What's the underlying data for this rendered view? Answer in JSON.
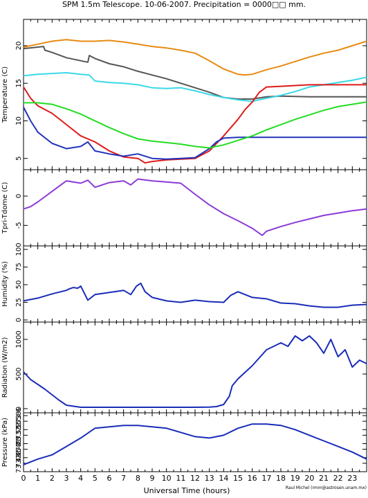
{
  "chart_data": {
    "type": "line",
    "title": "SPM 1.5m Telescope. 10-06-2007. Precipitation = 0000□□ mm.",
    "xlabel": "Universal Time (hours)",
    "credit": "Raul Michel (rmm@astrosen.unam.mx)",
    "xlim": [
      0,
      24
    ],
    "xticks": [
      0,
      1,
      2,
      3,
      4,
      5,
      6,
      7,
      8,
      9,
      10,
      11,
      12,
      13,
      14,
      15,
      16,
      17,
      18,
      19,
      20,
      21,
      22,
      23
    ],
    "panels": [
      {
        "ylabel": "Temperature (C)",
        "ylim": [
          3.5,
          23.5
        ],
        "yticks": [
          5,
          10,
          15,
          20
        ],
        "series": [
          {
            "color": "#e88a10",
            "x": [
              0,
              1,
              2,
              3,
              4,
              5,
              6,
              7,
              8,
              9,
              10,
              11,
              12,
              13,
              14,
              15,
              15.5,
              16,
              17,
              18,
              19,
              20,
              21,
              22,
              23,
              24
            ],
            "y": [
              19.8,
              20.2,
              20.6,
              20.8,
              20.6,
              20.6,
              20.7,
              20.5,
              20.2,
              19.9,
              19.7,
              19.4,
              19.0,
              18.0,
              16.9,
              16.2,
              16.1,
              16.2,
              16.8,
              17.3,
              17.9,
              18.5,
              19.0,
              19.4,
              20.0,
              20.6
            ]
          },
          {
            "color": "#555555",
            "x": [
              0,
              1.4,
              1.5,
              2,
              3,
              4,
              4.5,
              4.6,
              5,
              6,
              7,
              8,
              9,
              10,
              11,
              12,
              13,
              14,
              15,
              16,
              17,
              18,
              20,
              22,
              24
            ],
            "y": [
              19.6,
              19.9,
              19.4,
              19.1,
              18.4,
              18.0,
              17.8,
              18.7,
              18.3,
              17.6,
              17.2,
              16.6,
              16.1,
              15.6,
              15.0,
              14.4,
              13.8,
              13.1,
              12.9,
              12.9,
              13.2,
              13.3,
              13.2,
              13.2,
              13.2
            ]
          },
          {
            "color": "#3ad8e8",
            "x": [
              0,
              1,
              2,
              3,
              4,
              4.6,
              5,
              6,
              7,
              8,
              9,
              10,
              11,
              12,
              13,
              14,
              15,
              16,
              17,
              18,
              19,
              20,
              21,
              22,
              23,
              24
            ],
            "y": [
              16.0,
              16.2,
              16.3,
              16.4,
              16.2,
              16.1,
              15.3,
              15.1,
              15.0,
              14.8,
              14.4,
              14.3,
              14.4,
              14.0,
              13.5,
              13.1,
              12.8,
              12.6,
              13.0,
              13.4,
              13.9,
              14.5,
              14.8,
              15.1,
              15.4,
              15.8
            ]
          },
          {
            "color": "#dd1a1a",
            "x": [
              0,
              0.5,
              1,
              2,
              3,
              4,
              5,
              6,
              7,
              8,
              8.5,
              9,
              10,
              11,
              12,
              13,
              14,
              15,
              15.5,
              16,
              16.5,
              17,
              18,
              20,
              22,
              24
            ],
            "y": [
              14.5,
              13.0,
              12.0,
              11.0,
              9.5,
              8.0,
              7.2,
              6.0,
              5.2,
              5.0,
              4.4,
              4.6,
              4.8,
              4.9,
              5.0,
              6.0,
              8.0,
              10.2,
              11.5,
              12.5,
              13.8,
              14.5,
              14.6,
              14.8,
              14.8,
              14.8
            ]
          },
          {
            "color": "#2233bb",
            "x": [
              0,
              0.5,
              1,
              2,
              3,
              4,
              4.5,
              5,
              6,
              7,
              8,
              9,
              10,
              11,
              12,
              13,
              13.5,
              14,
              15,
              16,
              18,
              20,
              22,
              24
            ],
            "y": [
              11.8,
              10.0,
              8.5,
              7.0,
              6.3,
              6.6,
              7.2,
              6.0,
              5.6,
              5.3,
              5.6,
              5.0,
              4.9,
              5.0,
              5.1,
              6.3,
              7.2,
              7.7,
              7.8,
              7.8,
              7.8,
              7.8,
              7.8,
              7.8
            ]
          },
          {
            "color": "#22dd22",
            "x": [
              0,
              1,
              2,
              3,
              4,
              5,
              6,
              7,
              8,
              9,
              10,
              11,
              12,
              13,
              14,
              15,
              16,
              17,
              18,
              19,
              20,
              21,
              22,
              23,
              24
            ],
            "y": [
              12.4,
              12.4,
              12.2,
              11.6,
              10.9,
              10.0,
              9.1,
              8.3,
              7.6,
              7.3,
              7.1,
              6.9,
              6.6,
              6.4,
              6.8,
              7.4,
              8.0,
              8.8,
              9.5,
              10.2,
              10.8,
              11.4,
              11.9,
              12.2,
              12.5
            ]
          }
        ]
      },
      {
        "ylabel": "Tpri-Tdome (C)",
        "ylim": [
          -8.5,
          4.5
        ],
        "yticks": [
          -5,
          0
        ],
        "series": [
          {
            "color": "#8b3ad8",
            "x": [
              0,
              0.5,
              1,
              2,
              3,
              4,
              4.5,
              5,
              6,
              7,
              7.5,
              8,
              9,
              10,
              11,
              12,
              13,
              14,
              15,
              16,
              16.7,
              17,
              18,
              19,
              20,
              21,
              22,
              23,
              24
            ],
            "y": [
              -2.2,
              -1.8,
              -1.0,
              0.8,
              2.6,
              2.2,
              2.7,
              1.5,
              2.3,
              2.6,
              1.9,
              2.9,
              2.6,
              2.4,
              2.2,
              0.3,
              -1.5,
              -3.0,
              -4.2,
              -5.5,
              -6.7,
              -6.0,
              -5.2,
              -4.5,
              -3.9,
              -3.3,
              -2.9,
              -2.5,
              -2.2
            ]
          }
        ]
      },
      {
        "ylabel": "Humidity (%)",
        "ylim": [
          -3,
          105
        ],
        "yticks": [
          0,
          25,
          50,
          75,
          100
        ],
        "series": [
          {
            "color": "#1a2bb8",
            "x": [
              0,
              1,
              2,
              3,
              3.2,
              3.5,
              3.8,
              4,
              4.5,
              5,
              6,
              7,
              7.5,
              7.9,
              8.2,
              8.5,
              9,
              10,
              11,
              12,
              13,
              14,
              14.5,
              15,
              16,
              17,
              18,
              19,
              20,
              21,
              22,
              23,
              24
            ],
            "y": [
              27,
              31,
              37,
              42,
              44,
              46,
              45,
              48,
              28,
              36,
              39,
              42,
              36,
              48,
              52,
              40,
              32,
              27,
              25,
              28,
              26,
              25,
              35,
              40,
              32,
              30,
              24,
              23,
              20,
              18,
              18,
              21,
              22
            ]
          }
        ]
      },
      {
        "ylabel": "Radiation (W/m2)",
        "ylim": [
          -60,
          1250
        ],
        "yticks": [
          0,
          500,
          1000
        ],
        "series": [
          {
            "color": "#1a2bb8",
            "x": [
              0,
              0.5,
              1,
              1.5,
              2,
              2.5,
              3,
              4,
              6,
              8,
              10,
              12,
              13,
              13.5,
              14,
              14.4,
              14.6,
              15,
              16,
              17,
              17.5,
              18,
              18.5,
              19,
              19.5,
              20,
              20.5,
              21,
              21.5,
              22,
              22.5,
              23,
              23.5,
              24
            ],
            "y": [
              530,
              420,
              350,
              280,
              200,
              120,
              50,
              20,
              20,
              20,
              20,
              20,
              22,
              30,
              60,
              180,
              330,
              430,
              620,
              850,
              900,
              950,
              900,
              1050,
              980,
              1050,
              950,
              800,
              1000,
              750,
              850,
              600,
              700,
              650
            ]
          }
        ]
      },
      {
        "ylabel": "Pressure (kPa)",
        "ylim": [
          73.4,
          73.61
        ],
        "yticks": [
          73.43,
          73.45,
          73.48,
          73.5,
          73.53,
          73.55,
          73.58,
          73.6
        ],
        "yticklabels": [
          "73.43",
          "73.45",
          "73.48",
          "73.5",
          "73.53",
          "73.55",
          "73.58",
          "73.6"
        ],
        "series": [
          {
            "color": "#1a2bb8",
            "x": [
              0,
              1,
              2,
              3,
              4,
              5,
              6,
              7,
              8,
              9,
              10,
              11,
              12,
              13,
              14,
              15,
              16,
              17,
              18,
              19,
              20,
              21,
              22,
              23,
              24
            ],
            "y": [
              73.425,
              73.445,
              73.46,
              73.49,
              73.52,
              73.555,
              73.56,
              73.565,
              73.565,
              73.56,
              73.555,
              73.54,
              73.525,
              73.52,
              73.53,
              73.555,
              73.57,
              73.57,
              73.565,
              73.55,
              73.53,
              73.51,
              73.49,
              73.47,
              73.445
            ]
          }
        ]
      }
    ]
  }
}
